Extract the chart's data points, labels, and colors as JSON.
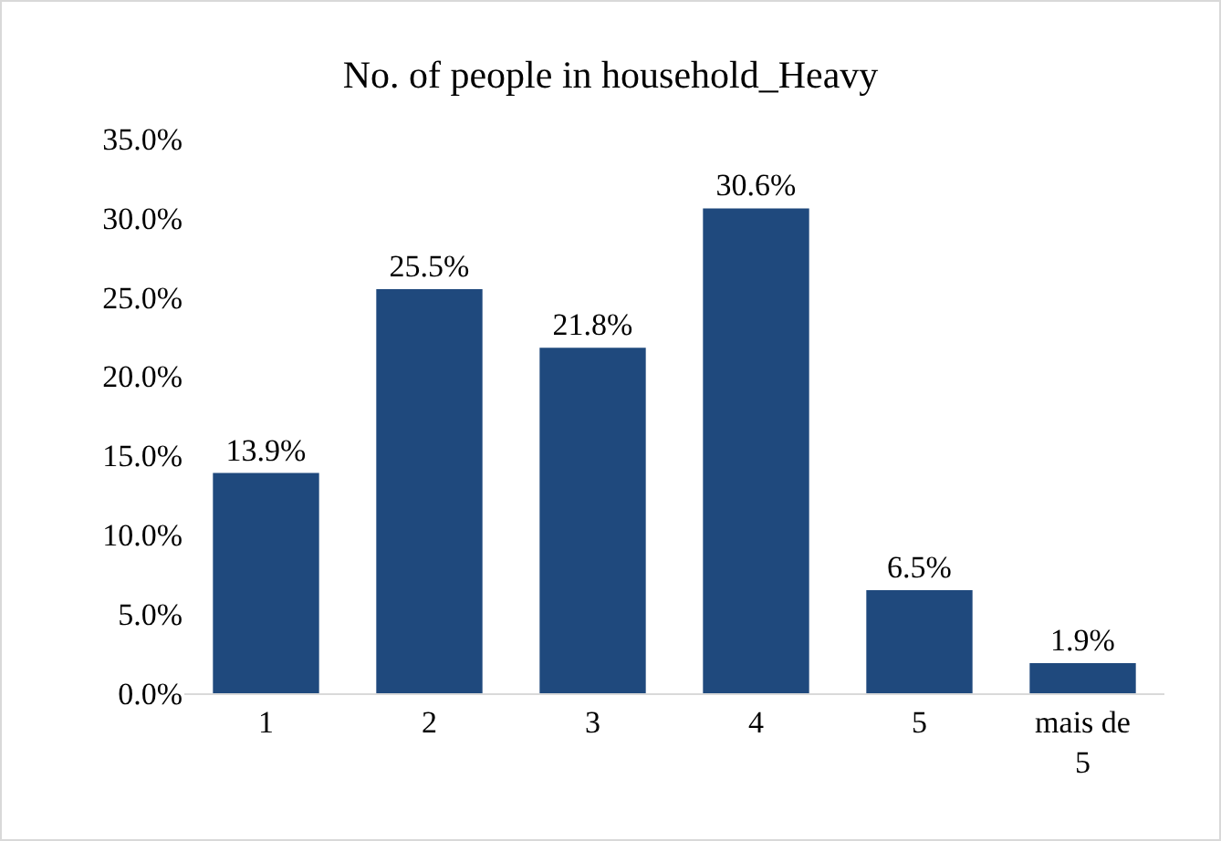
{
  "chart_data": {
    "type": "bar",
    "title": "No. of people in household_Heavy",
    "categories": [
      "1",
      "2",
      "3",
      "4",
      "5",
      "mais de 5"
    ],
    "values": [
      13.9,
      25.5,
      21.8,
      30.6,
      6.5,
      1.9
    ],
    "value_labels": [
      "13.9%",
      "25.5%",
      "21.8%",
      "30.6%",
      "6.5%",
      "1.9%"
    ],
    "color": "#1f497d",
    "ylim": [
      0,
      35
    ],
    "yticks": [
      {
        "value": 0,
        "label": "0.0%"
      },
      {
        "value": 5,
        "label": "5.0%"
      },
      {
        "value": 10,
        "label": "10.0%"
      },
      {
        "value": 15,
        "label": "15.0%"
      },
      {
        "value": 20,
        "label": "20.0%"
      },
      {
        "value": 25,
        "label": "25.0%"
      },
      {
        "value": 30,
        "label": "30.0%"
      },
      {
        "value": 35,
        "label": "35.0%"
      }
    ],
    "grid": false,
    "legend": false
  }
}
